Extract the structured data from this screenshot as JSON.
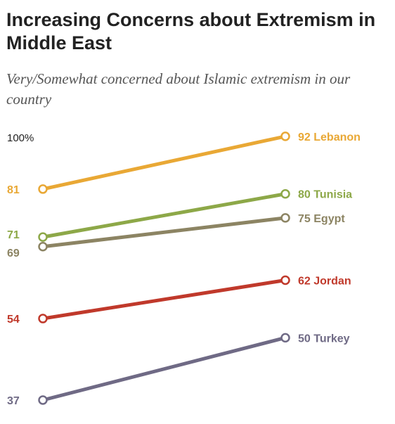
{
  "title": "Increasing Concerns about Extremism in Middle East",
  "subtitle": "Very/Somewhat concerned about Islamic extremism in our country",
  "chart_data": {
    "type": "line",
    "title": "Increasing Concerns about Extremism in Middle East",
    "subtitle": "Very/Somewhat concerned about Islamic extremism in our country",
    "y_axis_label": "100%",
    "ylim": [
      0,
      100
    ],
    "grid": false,
    "legend": "direct labels at line ends",
    "series": [
      {
        "name": "Lebanon",
        "values": [
          81,
          92
        ],
        "start_label": "81",
        "end_label": "92",
        "color": "#e9a835"
      },
      {
        "name": "Tunisia",
        "values": [
          71,
          80
        ],
        "start_label": "71",
        "end_label": "80",
        "color": "#8da848"
      },
      {
        "name": "Egypt",
        "values": [
          69,
          75
        ],
        "start_label": "69",
        "end_label": "75",
        "color": "#8c8463"
      },
      {
        "name": "Jordan",
        "values": [
          54,
          62
        ],
        "start_label": "54",
        "end_label": "62",
        "color": "#c0392b"
      },
      {
        "name": "Turkey",
        "values": [
          37,
          50
        ],
        "start_label": "37",
        "end_label": "50",
        "color": "#6f6a85"
      }
    ]
  }
}
